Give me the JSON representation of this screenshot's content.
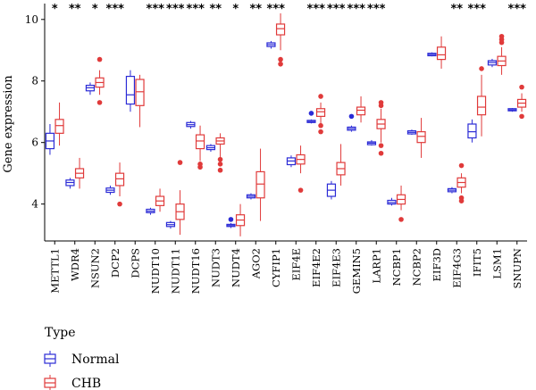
{
  "chart_data": {
    "type": "boxplot",
    "ylabel": "Gene expression",
    "ylim": [
      2.8,
      10.4
    ],
    "yticks": [
      4,
      6,
      8,
      10
    ],
    "ytick_labels": [
      "4",
      "6",
      "8",
      "10"
    ],
    "grid": false,
    "legend": {
      "title": "Type",
      "placement": "bottom-left",
      "entries": [
        {
          "name": "Normal",
          "color": "#2b2bd6"
        },
        {
          "name": "CHB",
          "color": "#e03a3a"
        }
      ]
    },
    "categories": [
      "METTL1",
      "WDR4",
      "NSUN2",
      "DCP2",
      "DCPS",
      "NUDT10",
      "NUDT11",
      "NUDT16",
      "NUDT3",
      "NUDT4",
      "AGO2",
      "CYFIP1",
      "EIF4E",
      "EIF4E2",
      "EIF4E3",
      "GEMIN5",
      "LARP1",
      "NCBP1",
      "NCBP2",
      "EIF3D",
      "EIF4G3",
      "IFIT5",
      "LSM1",
      "SNUPN"
    ],
    "significance": [
      "*",
      "**",
      "*",
      "***",
      "",
      "***",
      "***",
      "***",
      "**",
      "*",
      "**",
      "***",
      "",
      "***",
      "***",
      "***",
      "***",
      "",
      "",
      "",
      "**",
      "***",
      "",
      "***"
    ],
    "series": [
      {
        "name": "Normal",
        "color": "#2b2bd6",
        "boxes": [
          {
            "whislo": 5.6,
            "q1": 5.8,
            "med": 6.05,
            "q3": 6.3,
            "whishi": 6.6,
            "fliers": []
          },
          {
            "whislo": 4.5,
            "q1": 4.6,
            "med": 4.7,
            "q3": 4.78,
            "whishi": 4.85,
            "fliers": []
          },
          {
            "whislo": 7.55,
            "q1": 7.68,
            "med": 7.78,
            "q3": 7.86,
            "whishi": 7.95,
            "fliers": []
          },
          {
            "whislo": 4.3,
            "q1": 4.38,
            "med": 4.45,
            "q3": 4.52,
            "whishi": 4.6,
            "fliers": []
          },
          {
            "whislo": 7.0,
            "q1": 7.25,
            "med": 7.55,
            "q3": 8.15,
            "whishi": 8.35,
            "fliers": []
          },
          {
            "whislo": 3.65,
            "q1": 3.72,
            "med": 3.77,
            "q3": 3.83,
            "whishi": 3.88,
            "fliers": []
          },
          {
            "whislo": 3.2,
            "q1": 3.27,
            "med": 3.33,
            "q3": 3.4,
            "whishi": 3.45,
            "fliers": []
          },
          {
            "whislo": 6.45,
            "q1": 6.52,
            "med": 6.58,
            "q3": 6.65,
            "whishi": 6.7,
            "fliers": []
          },
          {
            "whislo": 5.7,
            "q1": 5.77,
            "med": 5.83,
            "q3": 5.9,
            "whishi": 5.95,
            "fliers": []
          },
          {
            "whislo": 3.22,
            "q1": 3.27,
            "med": 3.3,
            "q3": 3.34,
            "whishi": 3.38,
            "fliers": [
              3.5
            ]
          },
          {
            "whislo": 4.15,
            "q1": 4.2,
            "med": 4.25,
            "q3": 4.3,
            "whishi": 4.35,
            "fliers": []
          },
          {
            "whislo": 9.05,
            "q1": 9.12,
            "med": 9.18,
            "q3": 9.24,
            "whishi": 9.3,
            "fliers": []
          },
          {
            "whislo": 5.2,
            "q1": 5.28,
            "med": 5.4,
            "q3": 5.5,
            "whishi": 5.58,
            "fliers": []
          },
          {
            "whislo": 6.62,
            "q1": 6.65,
            "med": 6.68,
            "q3": 6.72,
            "whishi": 6.75,
            "fliers": [
              6.95
            ]
          },
          {
            "whislo": 4.15,
            "q1": 4.25,
            "med": 4.45,
            "q3": 4.65,
            "whishi": 4.75,
            "fliers": []
          },
          {
            "whislo": 6.35,
            "q1": 6.4,
            "med": 6.45,
            "q3": 6.5,
            "whishi": 6.55,
            "fliers": [
              6.85
            ]
          },
          {
            "whislo": 5.9,
            "q1": 5.93,
            "med": 5.98,
            "q3": 6.02,
            "whishi": 6.08,
            "fliers": []
          },
          {
            "whislo": 3.95,
            "q1": 4.0,
            "med": 4.05,
            "q3": 4.12,
            "whishi": 4.2,
            "fliers": []
          },
          {
            "whislo": 6.25,
            "q1": 6.28,
            "med": 6.33,
            "q3": 6.38,
            "whishi": 6.42,
            "fliers": []
          },
          {
            "whislo": 8.8,
            "q1": 8.82,
            "med": 8.86,
            "q3": 8.9,
            "whishi": 8.93,
            "fliers": []
          },
          {
            "whislo": 4.35,
            "q1": 4.4,
            "med": 4.45,
            "q3": 4.5,
            "whishi": 4.55,
            "fliers": []
          },
          {
            "whislo": 6.0,
            "q1": 6.15,
            "med": 6.35,
            "q3": 6.6,
            "whishi": 6.75,
            "fliers": []
          },
          {
            "whislo": 8.45,
            "q1": 8.52,
            "med": 8.6,
            "q3": 8.66,
            "whishi": 8.72,
            "fliers": []
          },
          {
            "whislo": 7.0,
            "q1": 7.03,
            "med": 7.06,
            "q3": 7.1,
            "whishi": 7.12,
            "fliers": []
          }
        ]
      },
      {
        "name": "CHB",
        "color": "#e03a3a",
        "boxes": [
          {
            "whislo": 5.9,
            "q1": 6.3,
            "med": 6.55,
            "q3": 6.75,
            "whishi": 7.3,
            "fliers": []
          },
          {
            "whislo": 4.5,
            "q1": 4.85,
            "med": 5.0,
            "q3": 5.15,
            "whishi": 5.5,
            "fliers": []
          },
          {
            "whislo": 7.55,
            "q1": 7.8,
            "med": 7.95,
            "q3": 8.1,
            "whishi": 8.35,
            "fliers": [
              7.3,
              8.7
            ]
          },
          {
            "whislo": 4.25,
            "q1": 4.6,
            "med": 4.82,
            "q3": 5.0,
            "whishi": 5.35,
            "fliers": [
              4.0
            ]
          },
          {
            "whislo": 6.5,
            "q1": 7.2,
            "med": 7.65,
            "q3": 8.05,
            "whishi": 8.2,
            "fliers": []
          },
          {
            "whislo": 3.75,
            "q1": 3.95,
            "med": 4.1,
            "q3": 4.25,
            "whishi": 4.5,
            "fliers": []
          },
          {
            "whislo": 3.0,
            "q1": 3.5,
            "med": 3.75,
            "q3": 4.0,
            "whishi": 4.45,
            "fliers": [
              5.35
            ]
          },
          {
            "whislo": 5.4,
            "q1": 5.8,
            "med": 6.05,
            "q3": 6.25,
            "whishi": 6.55,
            "fliers": [
              5.2,
              5.3
            ]
          },
          {
            "whislo": 5.5,
            "q1": 5.95,
            "med": 6.05,
            "q3": 6.15,
            "whishi": 6.3,
            "fliers": [
              5.1,
              5.3,
              5.45
            ]
          },
          {
            "whislo": 2.95,
            "q1": 3.3,
            "med": 3.48,
            "q3": 3.65,
            "whishi": 4.0,
            "fliers": []
          },
          {
            "whislo": 3.45,
            "q1": 4.2,
            "med": 4.65,
            "q3": 5.05,
            "whishi": 5.8,
            "fliers": []
          },
          {
            "whislo": 9.0,
            "q1": 9.5,
            "med": 9.7,
            "q3": 9.85,
            "whishi": 10.2,
            "fliers": [
              8.55,
              8.7
            ]
          },
          {
            "whislo": 5.0,
            "q1": 5.3,
            "med": 5.45,
            "q3": 5.6,
            "whishi": 5.9,
            "fliers": [
              4.45
            ]
          },
          {
            "whislo": 6.6,
            "q1": 6.85,
            "med": 7.0,
            "q3": 7.1,
            "whishi": 7.3,
            "fliers": [
              6.35,
              6.55,
              7.5
            ]
          },
          {
            "whislo": 4.6,
            "q1": 4.95,
            "med": 5.15,
            "q3": 5.35,
            "whishi": 5.95,
            "fliers": []
          },
          {
            "whislo": 6.65,
            "q1": 6.9,
            "med": 7.05,
            "q3": 7.15,
            "whishi": 7.5,
            "fliers": []
          },
          {
            "whislo": 6.0,
            "q1": 6.45,
            "med": 6.6,
            "q3": 6.75,
            "whishi": 7.1,
            "fliers": [
              5.65,
              5.9,
              7.2,
              7.3
            ]
          },
          {
            "whislo": 3.8,
            "q1": 4.0,
            "med": 4.15,
            "q3": 4.3,
            "whishi": 4.6,
            "fliers": [
              3.5
            ]
          },
          {
            "whislo": 5.5,
            "q1": 6.0,
            "med": 6.2,
            "q3": 6.35,
            "whishi": 6.8,
            "fliers": []
          },
          {
            "whislo": 8.4,
            "q1": 8.7,
            "med": 8.85,
            "q3": 9.1,
            "whishi": 9.45,
            "fliers": []
          },
          {
            "whislo": 4.35,
            "q1": 4.55,
            "med": 4.7,
            "q3": 4.85,
            "whishi": 5.0,
            "fliers": [
              4.1,
              4.2,
              5.25
            ]
          },
          {
            "whislo": 6.2,
            "q1": 6.9,
            "med": 7.15,
            "q3": 7.5,
            "whishi": 8.2,
            "fliers": [
              8.4
            ]
          },
          {
            "whislo": 8.2,
            "q1": 8.5,
            "med": 8.65,
            "q3": 8.8,
            "whishi": 9.1,
            "fliers": [
              9.25,
              9.35,
              9.45
            ]
          },
          {
            "whislo": 7.0,
            "q1": 7.15,
            "med": 7.28,
            "q3": 7.4,
            "whishi": 7.6,
            "fliers": [
              6.85,
              7.8
            ]
          }
        ]
      }
    ]
  }
}
